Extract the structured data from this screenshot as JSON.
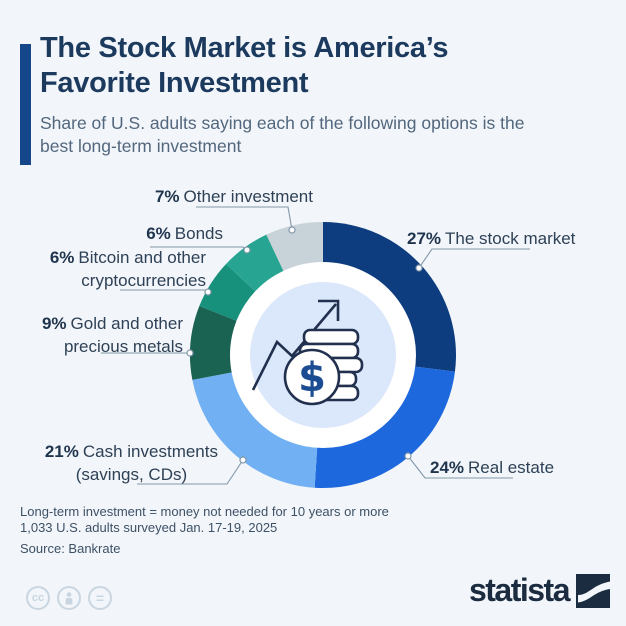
{
  "header": {
    "title": "The Stock Market is America’s Favorite Investment",
    "subtitle": "Share of U.S. adults saying each of the following options is the best long-term investment"
  },
  "chart_data": {
    "type": "pie",
    "donut": true,
    "title": "The Stock Market is America’s Favorite Investment",
    "unit": "% of U.S. adults",
    "start_angle_deg": 0,
    "direction": "clockwise",
    "segments": [
      {
        "label": "The stock market",
        "value": 27,
        "color": "#0e3d7f"
      },
      {
        "label": "Real estate",
        "value": 24,
        "color": "#1e68de"
      },
      {
        "label": "Cash investments (savings, CDs)",
        "value": 21,
        "color": "#71b1f3"
      },
      {
        "label": "Gold and other precious metals",
        "value": 9,
        "color": "#1a6252"
      },
      {
        "label": "Bitcoin and other cryptocurrencies",
        "value": 6,
        "color": "#17917c"
      },
      {
        "label": "Bonds",
        "value": 6,
        "color": "#27a592"
      },
      {
        "label": "Other investment",
        "value": 7,
        "color": "#c8d2d9"
      }
    ]
  },
  "labels": {
    "stock": {
      "pct": "27%",
      "line1": "The stock market"
    },
    "real": {
      "pct": "24%",
      "line1": "Real estate"
    },
    "cash": {
      "pct": "21%",
      "line1": "Cash investments",
      "line2": "(savings, CDs)"
    },
    "gold": {
      "pct": "9%",
      "line1": "Gold and other",
      "line2": "precious metals"
    },
    "bitcoin": {
      "pct": "6%",
      "line1": "Bitcoin and other",
      "line2": "cryptocurrencies"
    },
    "bonds": {
      "pct": "6%",
      "line1": "Bonds"
    },
    "other": {
      "pct": "7%",
      "line1": "Other investment"
    }
  },
  "footnotes": {
    "definition": "Long-term investment = money not needed for 10 years or more",
    "sample": "1,033 U.S. adults surveyed Jan. 17-19, 2025",
    "source": "Source: Bankrate"
  },
  "branding": {
    "wordmark": "statista",
    "license_icons": [
      "cc-icon",
      "attribution-person-icon",
      "no-derivatives-equals-icon"
    ]
  },
  "colors": {
    "background": "#f2f5f9",
    "accent_bar": "#15468a",
    "title_text": "#1c3a5e",
    "subtitle_text": "#52677e",
    "leader_line": "#8296a8",
    "center_circle": "#dbe7fa",
    "icon_stroke": "#22304f",
    "dollar_fill": "#1c4c92",
    "brand_navy": "#1b2b40"
  }
}
